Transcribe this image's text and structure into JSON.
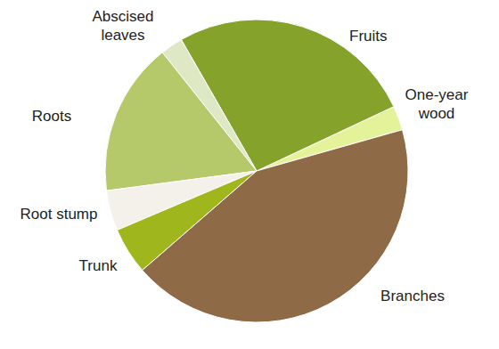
{
  "chart_data": {
    "type": "pie",
    "categories": [
      "One-year wood",
      "Fruits",
      "Abscised leaves",
      "Roots",
      "Root stump",
      "Trunk",
      "Branches"
    ],
    "values": [
      2.6,
      26.3,
      2.4,
      16.4,
      4.3,
      5.0,
      43.0
    ],
    "colors": [
      "#e4f39a",
      "#85a22b",
      "#dfe8c5",
      "#b5c96a",
      "#f4f0ea",
      "#9fb71c",
      "#8e6a46"
    ]
  }
}
